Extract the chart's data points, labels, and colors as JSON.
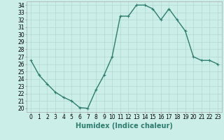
{
  "x": [
    0,
    1,
    2,
    3,
    4,
    5,
    6,
    7,
    8,
    9,
    10,
    11,
    12,
    13,
    14,
    15,
    16,
    17,
    18,
    19,
    20,
    21,
    22,
    23
  ],
  "y": [
    26.5,
    24.5,
    23.3,
    22.2,
    21.5,
    21.0,
    20.1,
    20.0,
    22.5,
    24.5,
    27.0,
    32.5,
    32.5,
    34.0,
    34.0,
    33.5,
    32.0,
    33.5,
    32.0,
    30.5,
    27.0,
    26.5,
    26.5,
    26.0
  ],
  "line_color": "#2e7d6e",
  "marker": "+",
  "marker_size": 3,
  "bg_color": "#cceee8",
  "grid_color": "#b0d8d0",
  "xlabel": "Humidex (Indice chaleur)",
  "xlabel_fontsize": 7,
  "xlabel_bold": true,
  "ylim": [
    19.5,
    34.5
  ],
  "xlim": [
    -0.5,
    23.5
  ],
  "yticks": [
    20,
    21,
    22,
    23,
    24,
    25,
    26,
    27,
    28,
    29,
    30,
    31,
    32,
    33,
    34
  ],
  "xtick_labels": [
    "0",
    "1",
    "2",
    "3",
    "4",
    "5",
    "6",
    "7",
    "8",
    "9",
    "10",
    "11",
    "12",
    "13",
    "14",
    "15",
    "16",
    "17",
    "18",
    "19",
    "20",
    "21",
    "22",
    "23"
  ],
  "tick_fontsize": 5.5,
  "linewidth": 1.0
}
